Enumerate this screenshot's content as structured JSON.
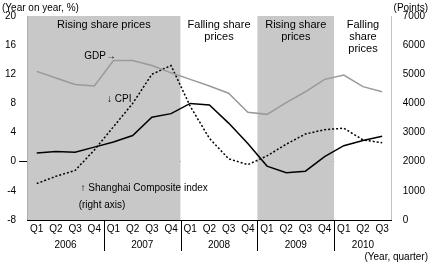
{
  "chart_data": {
    "type": "line",
    "y_title": "(Year on year, %)",
    "y2_title": "(Points)",
    "x_title": "(Year, quarter)",
    "categories": [
      "Q1",
      "Q2",
      "Q3",
      "Q4",
      "Q1",
      "Q2",
      "Q3",
      "Q4",
      "Q1",
      "Q2",
      "Q3",
      "Q4",
      "Q1",
      "Q2",
      "Q3",
      "Q4",
      "Q1",
      "Q2",
      "Q3"
    ],
    "x_groups": [
      {
        "label": "2006",
        "count": 4
      },
      {
        "label": "2007",
        "count": 4
      },
      {
        "label": "2008",
        "count": 4
      },
      {
        "label": "2009",
        "count": 4
      },
      {
        "label": "2010",
        "count": 3
      }
    ],
    "series": [
      {
        "name": "GDP",
        "color": "#9a9a9a",
        "marker": "none",
        "line_style": "solid",
        "axis": "y",
        "values": [
          12.4,
          11.5,
          10.6,
          10.4,
          13.9,
          13.9,
          13.2,
          12.2,
          11.3,
          10.4,
          9.4,
          6.8,
          6.5,
          8.1,
          9.6,
          11.3,
          11.9,
          10.3,
          9.6
        ]
      },
      {
        "name": "CPI",
        "color": "#000000",
        "marker": "none",
        "line_style": "solid",
        "axis": "y",
        "values": [
          1.2,
          1.4,
          1.3,
          2.0,
          2.7,
          3.6,
          6.1,
          6.6,
          8.0,
          7.8,
          5.3,
          2.5,
          -0.6,
          -1.5,
          -1.3,
          0.7,
          2.2,
          2.9,
          3.5
        ]
      },
      {
        "name": "Shanghai Composite index",
        "color": "#000000",
        "marker": "none",
        "line_style": "dotted",
        "axis": "y2",
        "values": [
          1250,
          1500,
          1700,
          2400,
          3200,
          4000,
          5000,
          5300,
          3900,
          2800,
          2100,
          1900,
          2200,
          2600,
          2950,
          3100,
          3150,
          2750,
          2650
        ]
      }
    ],
    "regions": [
      {
        "label": "Rising share prices",
        "from": 0,
        "to": 7,
        "color": "#c8c8c8"
      },
      {
        "label": "Falling share prices",
        "from": 8,
        "to": 11,
        "color": "#ffffff"
      },
      {
        "label": "Rising share prices",
        "from": 12,
        "to": 15,
        "color": "#c8c8c8"
      },
      {
        "label": "Falling share prices",
        "from": 16,
        "to": 18,
        "color": "#ffffff"
      }
    ],
    "annotations": [
      {
        "text": "GDP→",
        "x": 3.3,
        "y": 14.5,
        "axis": "y"
      },
      {
        "text": "↓ CPI",
        "x": 4.3,
        "y": 8.6,
        "axis": "y"
      },
      {
        "text": "↑ Shanghai Composite index",
        "x": 5.6,
        "y": -3.6,
        "axis": "y"
      },
      {
        "text": "(right axis)",
        "x": 3.4,
        "y": -6.0,
        "axis": "y"
      }
    ],
    "ylim": [
      -8,
      20
    ],
    "yticks": [
      -8,
      -4,
      0,
      4,
      8,
      12,
      16,
      20
    ],
    "y2lim": [
      0,
      7000
    ],
    "y2ticks": [
      0,
      1000,
      2000,
      3000,
      4000,
      5000,
      6000,
      7000
    ],
    "grid": false,
    "legend": "none"
  }
}
